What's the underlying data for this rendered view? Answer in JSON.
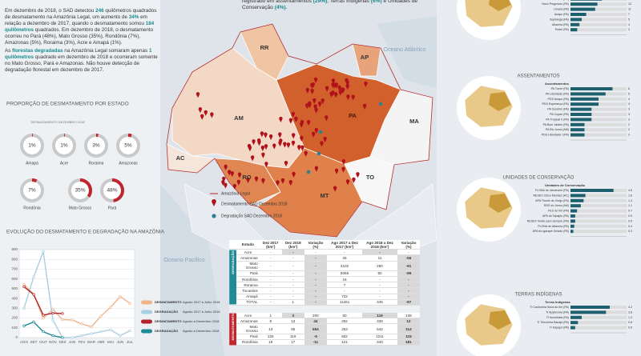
{
  "intro": {
    "paragraphs": [
      [
        {
          "text": "Em dezembro de 2018, o SAD detectou ",
          "bold": false
        },
        {
          "text": "246",
          "bold": true
        },
        {
          "text": " quilômetros quadrados de desmatamento na Amazônia Legal, um aumento de ",
          "bold": false
        },
        {
          "text": "34%",
          "bold": true
        },
        {
          "text": " em relação a dezembro de 2017, quando o desmatamento somou ",
          "bold": false
        },
        {
          "text": "184 quilômetros",
          "bold": true
        },
        {
          "text": " quadrados. Em dezembro de 2018, o desmatamento ocorreu no Pará (48%), Mato Grosso (35%), Rondônia (7%), Amazonas (5%), Roraima (3%), Acre e Amapá (1%).",
          "bold": false
        }
      ],
      [
        {
          "text": "As ",
          "bold": false
        },
        {
          "text": "florestas degradadas",
          "bold": true
        },
        {
          "text": " na Amazônia Legal somaram apenas ",
          "bold": false
        },
        {
          "text": "1 quilômetros",
          "bold": true
        },
        {
          "text": " quadrado em dezembro de 2018 e ocorreram somente no Mato Grosso, Pará e Amazonas. Não houve detecção de degradação florestal em dezembro de 2017.",
          "bold": false
        }
      ]
    ]
  },
  "top_note": [
    {
      "text": "registrado em assentamentos ",
      "bold": false
    },
    {
      "text": "(29%)",
      "bold": true
    },
    {
      "text": ", Terras Indígenas ",
      "bold": false
    },
    {
      "text": "(6%)",
      "bold": true
    },
    {
      "text": " e Unidades de Conservação ",
      "bold": false
    },
    {
      "text": "(4%)",
      "bold": true
    },
    {
      "text": ".",
      "bold": false
    }
  ],
  "proportion": {
    "title": "PROPORÇÃO DE DESMATAMENTO POR ESTADO",
    "subtitle": "DESMATAMENTO DEZEMBRO 2018",
    "states": [
      {
        "name": "Amapá",
        "value": 1,
        "label": "1%"
      },
      {
        "name": "Acre",
        "value": 1,
        "label": "1%"
      },
      {
        "name": "Roraima",
        "value": 3,
        "label": "3%"
      },
      {
        "name": "Amazonas",
        "value": 5,
        "label": "5%"
      },
      {
        "name": "Rondônia",
        "value": 7,
        "label": "7%"
      },
      {
        "name": "Mato Grosso",
        "value": 35,
        "label": "35%"
      },
      {
        "name": "Pará",
        "value": 48,
        "label": "48%"
      }
    ]
  },
  "evolution": {
    "title": "EVOLUÇÃO DO DESMATAMENTO E DEGRADAÇÃO NA AMAZÔNIA",
    "categories": [
      "AGO",
      "SET",
      "OUT",
      "NOV",
      "DEZ",
      "JAN",
      "FEV",
      "MAR",
      "ABR",
      "MAI",
      "JUN",
      "JUL"
    ],
    "ylim": [
      0,
      900
    ],
    "yticks": [
      0,
      100,
      200,
      300,
      400,
      500,
      600,
      700,
      800,
      900
    ],
    "series": [
      {
        "name": "DESMATAMENTO",
        "period": "Agosto 2017 a Julho 2018",
        "color": "#f0b48a",
        "values": [
          545,
          445,
          200,
          290,
          184,
          180,
          140,
          110,
          220,
          310,
          420,
          350
        ]
      },
      {
        "name": "DEGRADAÇÃO",
        "period": "Agosto 2017 a Julho 2018",
        "color": "#a9cfe0",
        "values": [
          300,
          620,
          880,
          180,
          0,
          0,
          20,
          40,
          60,
          80,
          20,
          70
        ]
      },
      {
        "name": "DESMATAMENTO",
        "period": "Agosto a Dezembro 2018",
        "color": "#b3232b",
        "values": [
          520,
          440,
          230,
          250,
          246,
          null,
          null,
          null,
          null,
          null,
          null,
          null
        ]
      },
      {
        "name": "DEGRADAÇÃO",
        "period": "Agosto a Dezembro 2018",
        "color": "#1f8c95",
        "values": [
          120,
          160,
          60,
          20,
          1,
          null,
          null,
          null,
          null,
          null,
          null,
          null
        ]
      }
    ]
  },
  "map": {
    "states": [
      "RR",
      "AP",
      "AM",
      "PA",
      "MA",
      "AC",
      "RO",
      "TO",
      "MT"
    ],
    "oceans": [
      "Oceano Atlântico",
      "Oceano Pacífico"
    ],
    "legend": [
      "Amazônia Legal",
      "Desmatamento SAD Dezembro 2018",
      "Degradação SAD Dezembro 2018"
    ]
  },
  "table": {
    "headers": [
      "Estado",
      "Dez 2017 (km²)",
      "Dez 2018 (km²)",
      "Variação (%)",
      "Ago 2017 a Dez 2017 (km²)",
      "Ago 2018 a Dez 2018 (km²)",
      "Variação (%)"
    ],
    "sections": [
      {
        "name": "DEGRADAÇÃO",
        "rows": [
          [
            "Acre",
            "-",
            "-",
            "-",
            "-",
            "-",
            "-"
          ],
          [
            "Amazonas",
            "-",
            "-",
            "-",
            25,
            11,
            -56
          ],
          [
            "Mato Grosso",
            "-",
            "-",
            "-",
            3102,
            280,
            -91
          ],
          [
            "Pará",
            "-",
            "-",
            "-",
            5066,
            50,
            -99
          ],
          [
            "Rondônia",
            "-",
            "-",
            "-",
            16,
            "-",
            "-"
          ],
          [
            "Roraima",
            "-",
            "-",
            "-",
            7,
            "-",
            "-"
          ],
          [
            "Tocantins",
            "-",
            "-",
            "-",
            "-",
            "-",
            "-"
          ],
          [
            "Amapá",
            "-",
            "-",
            "-",
            722,
            "-",
            "-"
          ],
          [
            "TOTAL",
            "-",
            1,
            "-",
            11261,
            345,
            -97
          ]
        ]
      },
      {
        "name": "DESMATAMENTO",
        "rows": [
          [
            "Acre",
            1,
            3,
            200,
            50,
            119,
            138
          ],
          [
            "Amazonas",
            9,
            13,
            44,
            292,
            328,
            12
          ],
          [
            "Mato Grosso",
            13,
            85,
            554,
            253,
            542,
            114
          ],
          [
            "Pará",
            125,
            119,
            -5,
            562,
            1211,
            115
          ],
          [
            "Rondônia",
            19,
            17,
            -11,
            121,
            340,
            181
          ]
        ]
      }
    ]
  },
  "panels": [
    {
      "title": null,
      "list_title": "Municípios",
      "items": [
        {
          "name": "Novo Repartimento (PA)",
          "value": 19
        },
        {
          "name": "Pacajá (PA)",
          "value": 16
        },
        {
          "name": "Medicilândia (PA)",
          "value": 14
        },
        {
          "name": "Novo Progresso (PA)",
          "value": 12
        },
        {
          "name": "Uruará (PA)",
          "value": 11
        },
        {
          "name": "Anapu (PA)",
          "value": 7
        },
        {
          "name": "Itupiranga (PA)",
          "value": 5
        },
        {
          "name": "Altamira (PA)",
          "value": 4
        },
        {
          "name": "Portel (PA)",
          "value": 3
        }
      ],
      "xmax": 25
    },
    {
      "title": "ASSENTAMENTOS",
      "list_title": "Assentamentos",
      "items": [
        {
          "name": "PA Tuerê (PA)",
          "value": 6
        },
        {
          "name": "PA Liberdade (PA)",
          "value": 5
        },
        {
          "name": "PDS Anapu (PA)",
          "value": 4
        },
        {
          "name": "PDS Esperança (PA)",
          "value": 4
        },
        {
          "name": "PA Surubim (PA)",
          "value": 3
        },
        {
          "name": "PA Cupari (PA)",
          "value": 3
        },
        {
          "name": "PA Tropical II (PA)",
          "value": 3
        },
        {
          "name": "PA Bom Jardim (PA)",
          "value": 2
        },
        {
          "name": "PA Rio Juma (AM)",
          "value": 2
        },
        {
          "name": "PDS Liberdade I (PA)",
          "value": 2
        }
      ],
      "xmax": 8
    },
    {
      "title": "UNIDADES DE CONSERVAÇÃO",
      "list_title": "Unidades de Conservação",
      "items": [
        {
          "name": "FLONA do Jamanxim (PA)",
          "value": 4.6
        },
        {
          "name": "RESEX Chico Mendes (AC)",
          "value": 1.6
        },
        {
          "name": "APA Triunfo do Xingu (PA)",
          "value": 1.4
        },
        {
          "name": "RDS do Juma (AM)",
          "value": 1.1
        },
        {
          "name": "FES do Iriri (PA)",
          "value": 0.7
        },
        {
          "name": "APA do Tapajós (PA)",
          "value": 0.5
        },
        {
          "name": "RESEX Verde para Sempre (PA)",
          "value": 0.5
        },
        {
          "name": "FLONA de Altamira (PA)",
          "value": 0.4
        },
        {
          "name": "APA do Igarapé Gelado (PA)",
          "value": 0.3
        }
      ],
      "xmax": 6
    },
    {
      "title": "TERRAS INDÍGENAS",
      "list_title": "Terras Indígenas",
      "items": [
        {
          "name": "TI Cachoeira Seca do Iriri (PA)",
          "value": 4.2
        },
        {
          "name": "TI Apyterewa (PA)",
          "value": 3.8
        },
        {
          "name": "TI Ituna/Itatá (PA)",
          "value": 1.2
        },
        {
          "name": "TI Trincheira Bacajá (PA)",
          "value": 0.8
        },
        {
          "name": "TI Kayapó (PA)",
          "value": 0.5
        }
      ],
      "xmax": 6
    }
  ]
}
